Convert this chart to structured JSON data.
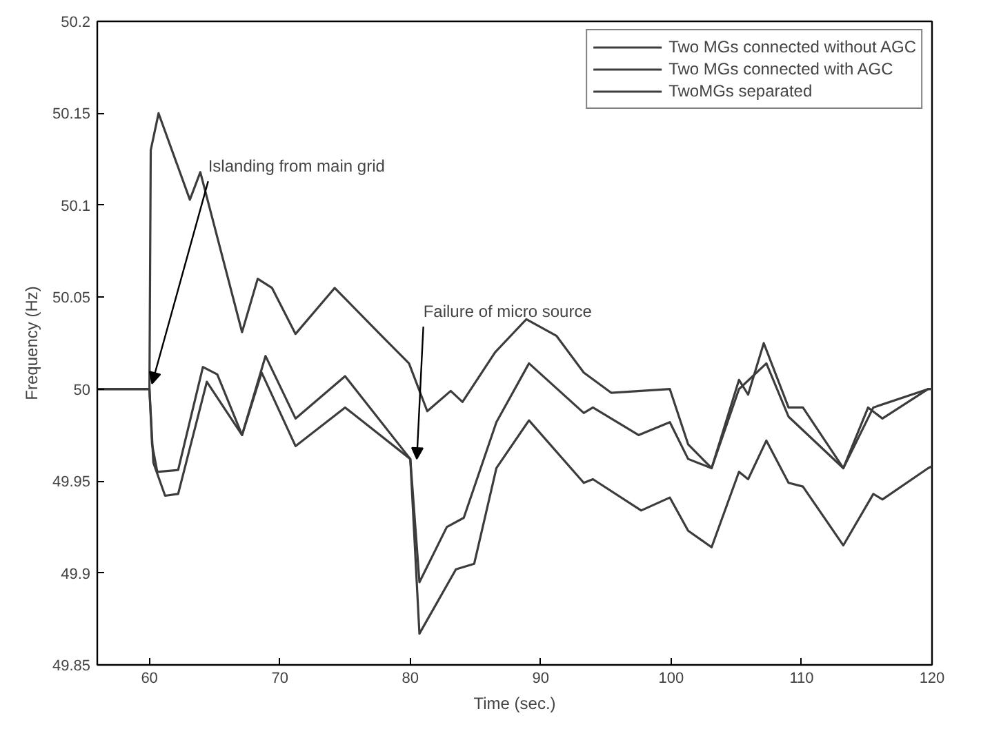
{
  "chart_data": {
    "type": "line",
    "xlabel": "Time (sec.)",
    "ylabel": "Frequency (Hz)",
    "xlim": [
      56,
      120
    ],
    "ylim": [
      49.85,
      50.2
    ],
    "xticks": [
      60,
      70,
      80,
      90,
      100,
      110,
      120
    ],
    "yticks": [
      49.85,
      49.9,
      49.95,
      50,
      50.05,
      50.1,
      50.15,
      50.2
    ],
    "grid": false,
    "legend": "top right",
    "line_style": "solid",
    "marker": "none",
    "series": [
      {
        "name": "Two MGs connected without AGC",
        "color": "#3c3c3c",
        "x": [
          56,
          60,
          60.3,
          61.2,
          62.2,
          64.4,
          67.1,
          68.6,
          71.2,
          75.0,
          80.0,
          80.7,
          83.5,
          84.9,
          86.6,
          89.1,
          93.3,
          94.0,
          97.7,
          99.9,
          101.3,
          103.1,
          105.2,
          105.9,
          107.3,
          109.0,
          110.1,
          113.2,
          115.5,
          116.2,
          119.7,
          120
        ],
        "values": [
          50,
          50,
          49.96,
          49.942,
          49.943,
          50.004,
          49.975,
          50.009,
          49.969,
          49.99,
          49.962,
          49.867,
          49.902,
          49.905,
          49.957,
          49.983,
          49.949,
          49.951,
          49.934,
          49.941,
          49.923,
          49.914,
          49.955,
          49.951,
          49.972,
          49.949,
          49.947,
          49.915,
          49.943,
          49.94,
          49.957,
          49.958
        ]
      },
      {
        "name": "Two MGs connected with AGC",
        "color": "#3c3c3c",
        "x": [
          56,
          60,
          60.2,
          60.6,
          62.2,
          64.1,
          65.2,
          67.1,
          68.9,
          71.2,
          75.0,
          80.0,
          80.7,
          82.8,
          84.1,
          86.6,
          89.1,
          93.3,
          94.0,
          97.5,
          99.9,
          101.3,
          103.1,
          105.2,
          107.3,
          109.0,
          113.2,
          115.5,
          119.7,
          120
        ],
        "values": [
          50,
          50,
          49.97,
          49.955,
          49.956,
          50.012,
          50.008,
          49.975,
          50.018,
          49.984,
          50.007,
          49.962,
          49.895,
          49.925,
          49.93,
          49.982,
          50.014,
          49.987,
          49.99,
          49.975,
          49.982,
          49.962,
          49.957,
          50.0,
          50.014,
          49.985,
          49.957,
          49.99,
          50.0,
          50.0
        ]
      },
      {
        "name": "TwoMGs separated",
        "color": "#3c3c3c",
        "x": [
          56,
          60,
          60.1,
          60.7,
          63.1,
          63.9,
          67.1,
          68.3,
          69.4,
          71.2,
          74.2,
          77.8,
          79.9,
          81.3,
          83.1,
          84.0,
          86.5,
          88.9,
          91.2,
          93.3,
          95.4,
          99.9,
          101.3,
          103.1,
          105.2,
          105.9,
          107.1,
          109.0,
          110.1,
          113.2,
          115.1,
          116.2,
          119.7,
          120
        ],
        "values": [
          50,
          50,
          50.13,
          50.15,
          50.103,
          50.118,
          50.031,
          50.06,
          50.055,
          50.03,
          50.055,
          50.029,
          50.014,
          49.988,
          49.999,
          49.993,
          50.02,
          50.038,
          50.029,
          50.009,
          49.998,
          50.0,
          49.97,
          49.957,
          50.005,
          49.997,
          50.025,
          49.99,
          49.99,
          49.957,
          49.99,
          49.984,
          50.0,
          50.0
        ]
      }
    ],
    "annotations": [
      {
        "text": "Islanding from main grid",
        "x": 60.2,
        "y": 50.003
      },
      {
        "text": "Failure of micro source",
        "x": 80.5,
        "y": 49.962
      }
    ]
  }
}
